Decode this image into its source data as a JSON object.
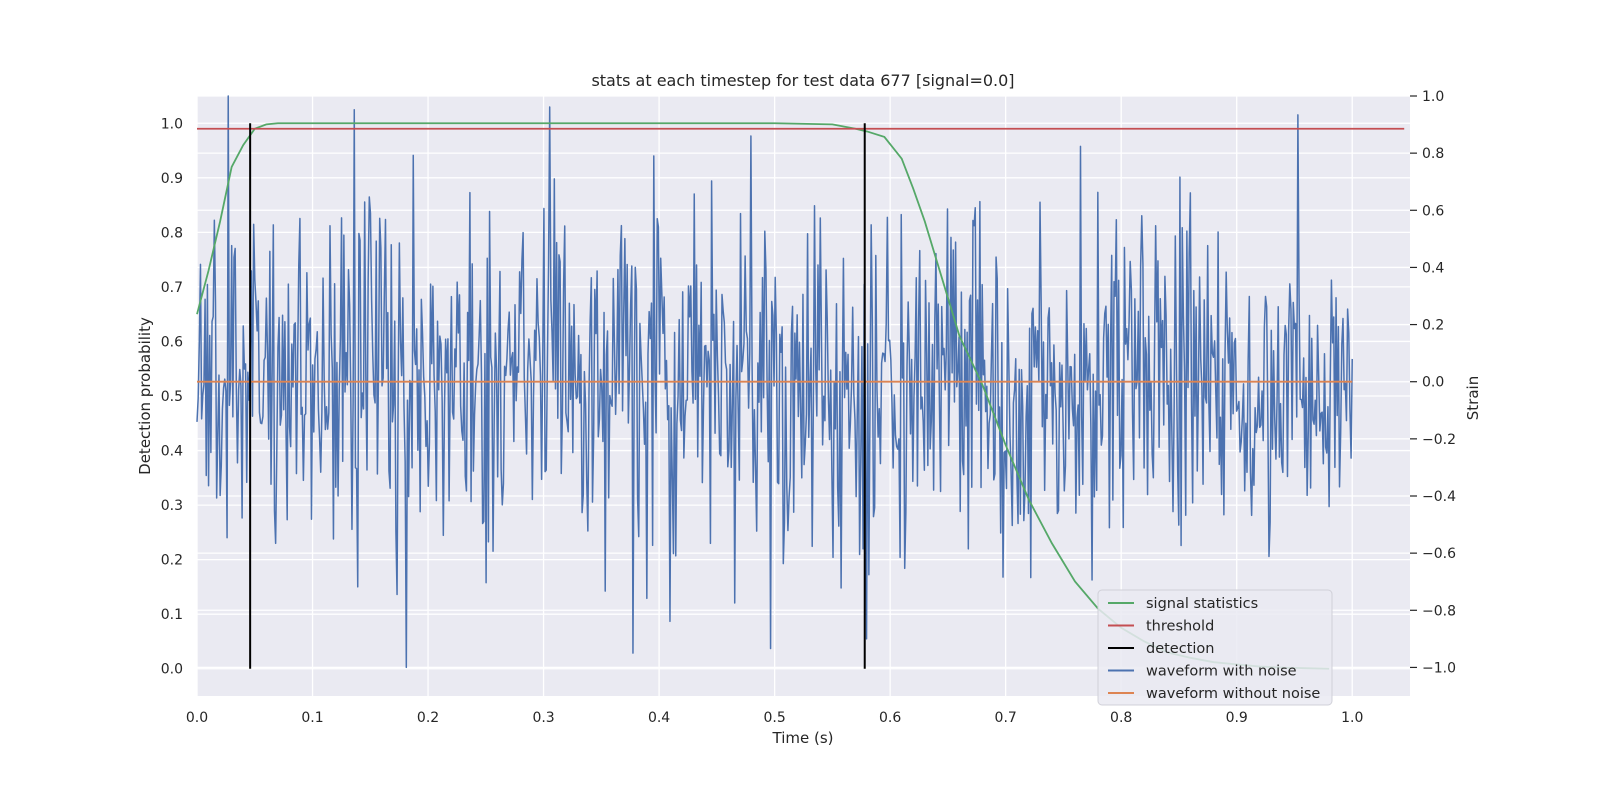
{
  "chart_data": {
    "type": "line",
    "title": "stats at each timestep for test data 677 [signal=0.0]",
    "xlabel": "Time (s)",
    "ylabel_left": "Detection probability",
    "ylabel_right": "Strain",
    "xlim": [
      0.0,
      1.05
    ],
    "ylim_left": [
      -0.05,
      1.05
    ],
    "ylim_right": [
      -1.1,
      1.0
    ],
    "xticks": [
      "0.0",
      "0.1",
      "0.2",
      "0.3",
      "0.4",
      "0.5",
      "0.6",
      "0.7",
      "0.8",
      "0.9",
      "1.0"
    ],
    "yticks_left": [
      "0.0",
      "0.1",
      "0.2",
      "0.3",
      "0.4",
      "0.5",
      "0.6",
      "0.7",
      "0.8",
      "0.9",
      "1.0"
    ],
    "yticks_right": [
      "−1.0",
      "−0.8",
      "−0.6",
      "−0.4",
      "−0.2",
      "0.0",
      "0.2",
      "0.4",
      "0.6",
      "0.8",
      "1.0"
    ],
    "grid": true,
    "legend_position": "lower-right",
    "colors": {
      "signal_statistics": "#55a868",
      "threshold": "#c44e52",
      "detection": "#000000",
      "waveform_with_noise": "#4c72b0",
      "waveform_without_noise": "#dd8452",
      "axes_background": "#eaeaf2",
      "grid": "#ffffff"
    },
    "series": [
      {
        "name": "signal statistics",
        "axis": "left",
        "x": [
          0.0,
          0.01,
          0.02,
          0.03,
          0.04,
          0.05,
          0.06,
          0.07,
          0.1,
          0.2,
          0.3,
          0.4,
          0.5,
          0.55,
          0.57,
          0.58,
          0.595,
          0.61,
          0.62,
          0.63,
          0.64,
          0.65,
          0.66,
          0.68,
          0.7,
          0.72,
          0.74,
          0.76,
          0.78,
          0.8,
          0.82,
          0.84,
          0.86,
          0.88,
          0.9,
          0.92,
          0.94,
          0.96,
          0.98
        ],
        "y": [
          0.65,
          0.73,
          0.82,
          0.92,
          0.96,
          0.99,
          0.998,
          1.0,
          1.0,
          1.0,
          1.0,
          1.0,
          1.0,
          0.998,
          0.99,
          0.985,
          0.975,
          0.935,
          0.88,
          0.82,
          0.75,
          0.68,
          0.61,
          0.52,
          0.41,
          0.31,
          0.23,
          0.16,
          0.11,
          0.075,
          0.05,
          0.03,
          0.02,
          0.012,
          0.008,
          0.004,
          0.002,
          0.001,
          0.0
        ]
      },
      {
        "name": "threshold",
        "axis": "left",
        "x": [
          0.0,
          1.045
        ],
        "y": [
          0.99,
          0.99
        ]
      },
      {
        "name": "detection",
        "axis": "left",
        "x_lines": [
          0.046,
          0.578
        ],
        "y_range": [
          0.0,
          1.0
        ]
      },
      {
        "name": "waveform with noise",
        "axis": "right",
        "generator": {
          "n": 1000,
          "x_range": [
            0.0,
            1.0
          ],
          "std": 0.3,
          "clip": [
            -1.0,
            1.0
          ],
          "seed": 677
        },
        "extremes": [
          {
            "x": 0.027,
            "y": 1.0
          },
          {
            "x": 0.181,
            "y": -1.0
          },
          {
            "x": 0.377,
            "y": -0.95
          },
          {
            "x": 0.479,
            "y": 0.86
          },
          {
            "x": 0.395,
            "y": 0.79
          },
          {
            "x": 0.58,
            "y": -0.9
          }
        ]
      },
      {
        "name": "waveform without noise",
        "axis": "right",
        "x": [
          0.0,
          1.0
        ],
        "y": [
          0.0,
          0.0
        ]
      }
    ],
    "legend": [
      "signal statistics",
      "threshold",
      "detection",
      "waveform with noise",
      "waveform without noise"
    ]
  }
}
